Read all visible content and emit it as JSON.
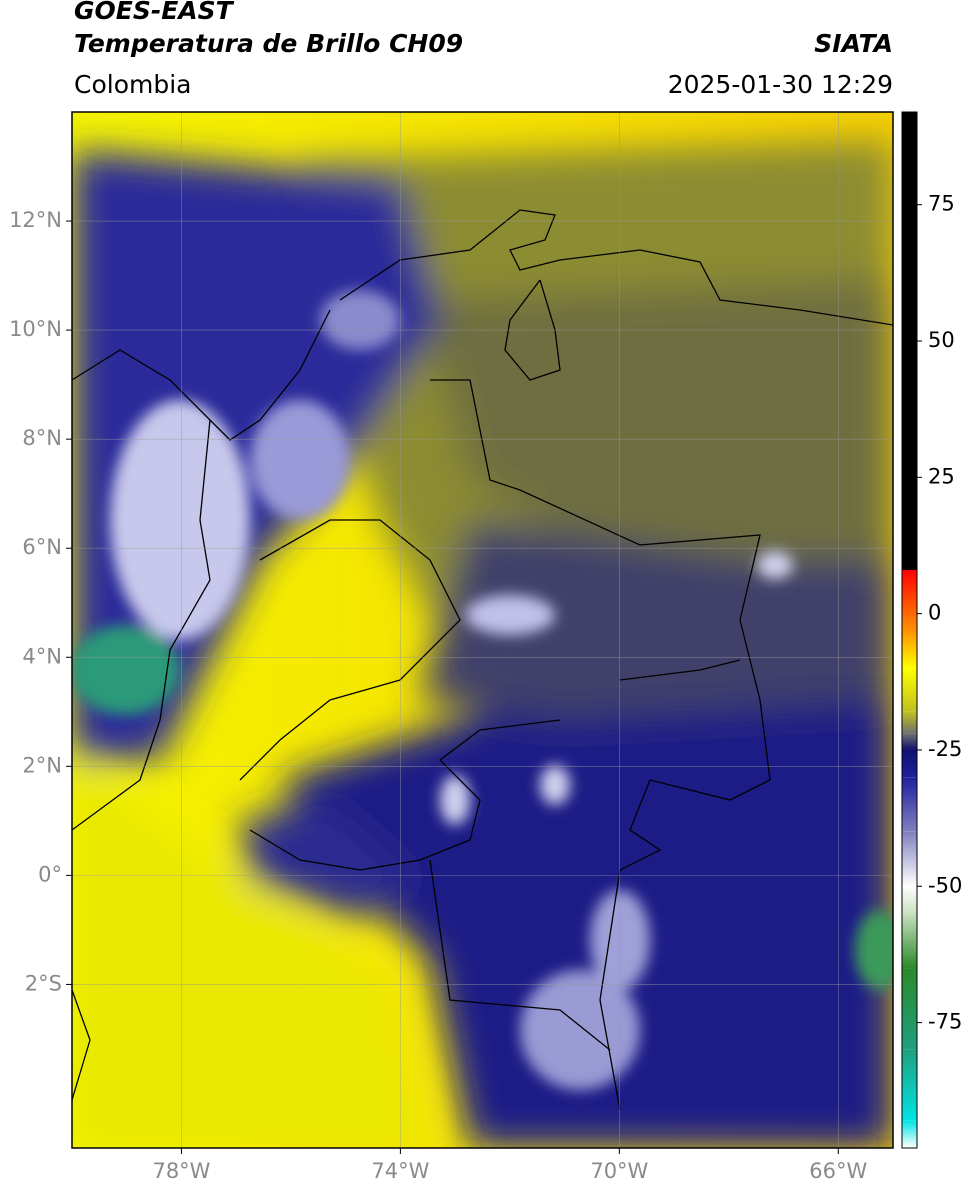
{
  "header": {
    "satellite": "GOES-EAST",
    "product": "Temperatura de Brillo CH09",
    "source": "SIATA",
    "region": "Colombia",
    "datetime": "2025-01-30 12:29"
  },
  "map": {
    "xlim": [
      -80,
      -65
    ],
    "ylim": [
      -5,
      14
    ],
    "xticks": [
      {
        "value": -78,
        "label": "78°W"
      },
      {
        "value": -74,
        "label": "74°W"
      },
      {
        "value": -70,
        "label": "70°W"
      },
      {
        "value": -66,
        "label": "66°W"
      }
    ],
    "yticks": [
      {
        "value": -2,
        "label": "2°S"
      },
      {
        "value": 0,
        "label": "0°"
      },
      {
        "value": 2,
        "label": "2°N"
      },
      {
        "value": 4,
        "label": "4°N"
      },
      {
        "value": 6,
        "label": "6°N"
      },
      {
        "value": 8,
        "label": "8°N"
      },
      {
        "value": 10,
        "label": "10°N"
      },
      {
        "value": 12,
        "label": "12°N"
      }
    ],
    "grid": true
  },
  "colorbar": {
    "lim": [
      -98,
      92
    ],
    "ticks": [
      -75,
      -50,
      -25,
      0,
      25,
      50,
      75
    ],
    "stops": [
      {
        "value": -98,
        "color": "#ffffff"
      },
      {
        "value": -93,
        "color": "#00e5e5"
      },
      {
        "value": -80,
        "color": "#20a080"
      },
      {
        "value": -65,
        "color": "#2a8a2a"
      },
      {
        "value": -55,
        "color": "#c8e0c0"
      },
      {
        "value": -50,
        "color": "#ffffff"
      },
      {
        "value": -40,
        "color": "#8080c0"
      },
      {
        "value": -30,
        "color": "#2020a0"
      },
      {
        "value": -25,
        "color": "#101070"
      },
      {
        "value": -22,
        "color": "#707070"
      },
      {
        "value": -18,
        "color": "#c0c020"
      },
      {
        "value": -10,
        "color": "#ffff00"
      },
      {
        "value": -3,
        "color": "#ff9000"
      },
      {
        "value": 8,
        "color": "#ff0000"
      },
      {
        "value": 8,
        "color": "#000000"
      },
      {
        "value": 92,
        "color": "#000000"
      }
    ]
  }
}
